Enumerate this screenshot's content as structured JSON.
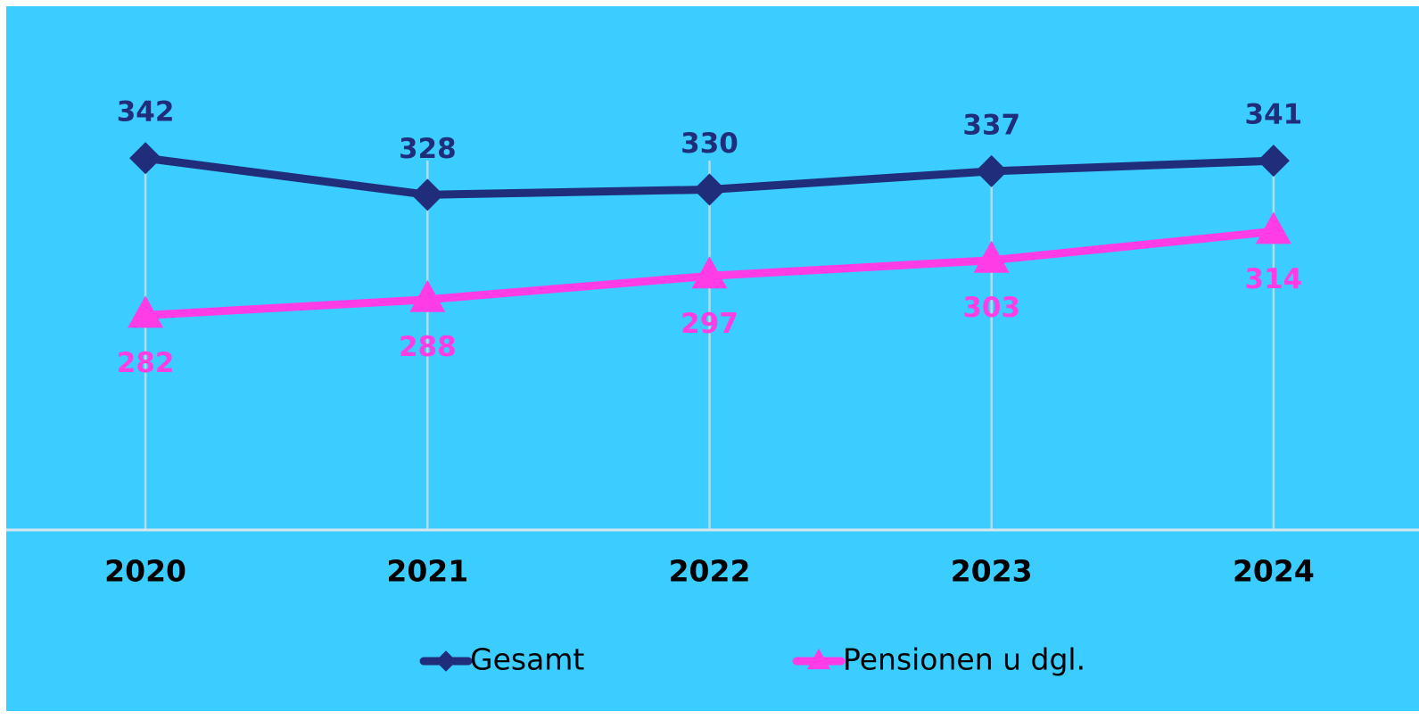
{
  "chart_data": {
    "type": "line",
    "categories": [
      "2020",
      "2021",
      "2022",
      "2023",
      "2024"
    ],
    "series": [
      {
        "name": "Gesamt",
        "color": "#1f2d7a",
        "marker": "diamond",
        "label_position": "above",
        "values": [
          342,
          328,
          330,
          337,
          341
        ]
      },
      {
        "name": "Pensionen u dgl.",
        "color": "#ff3ce6",
        "marker": "triangle",
        "label_position": "below",
        "values": [
          282,
          288,
          297,
          303,
          314
        ]
      }
    ],
    "ylim": [
      200,
      400
    ],
    "background": "#3bcdff"
  }
}
